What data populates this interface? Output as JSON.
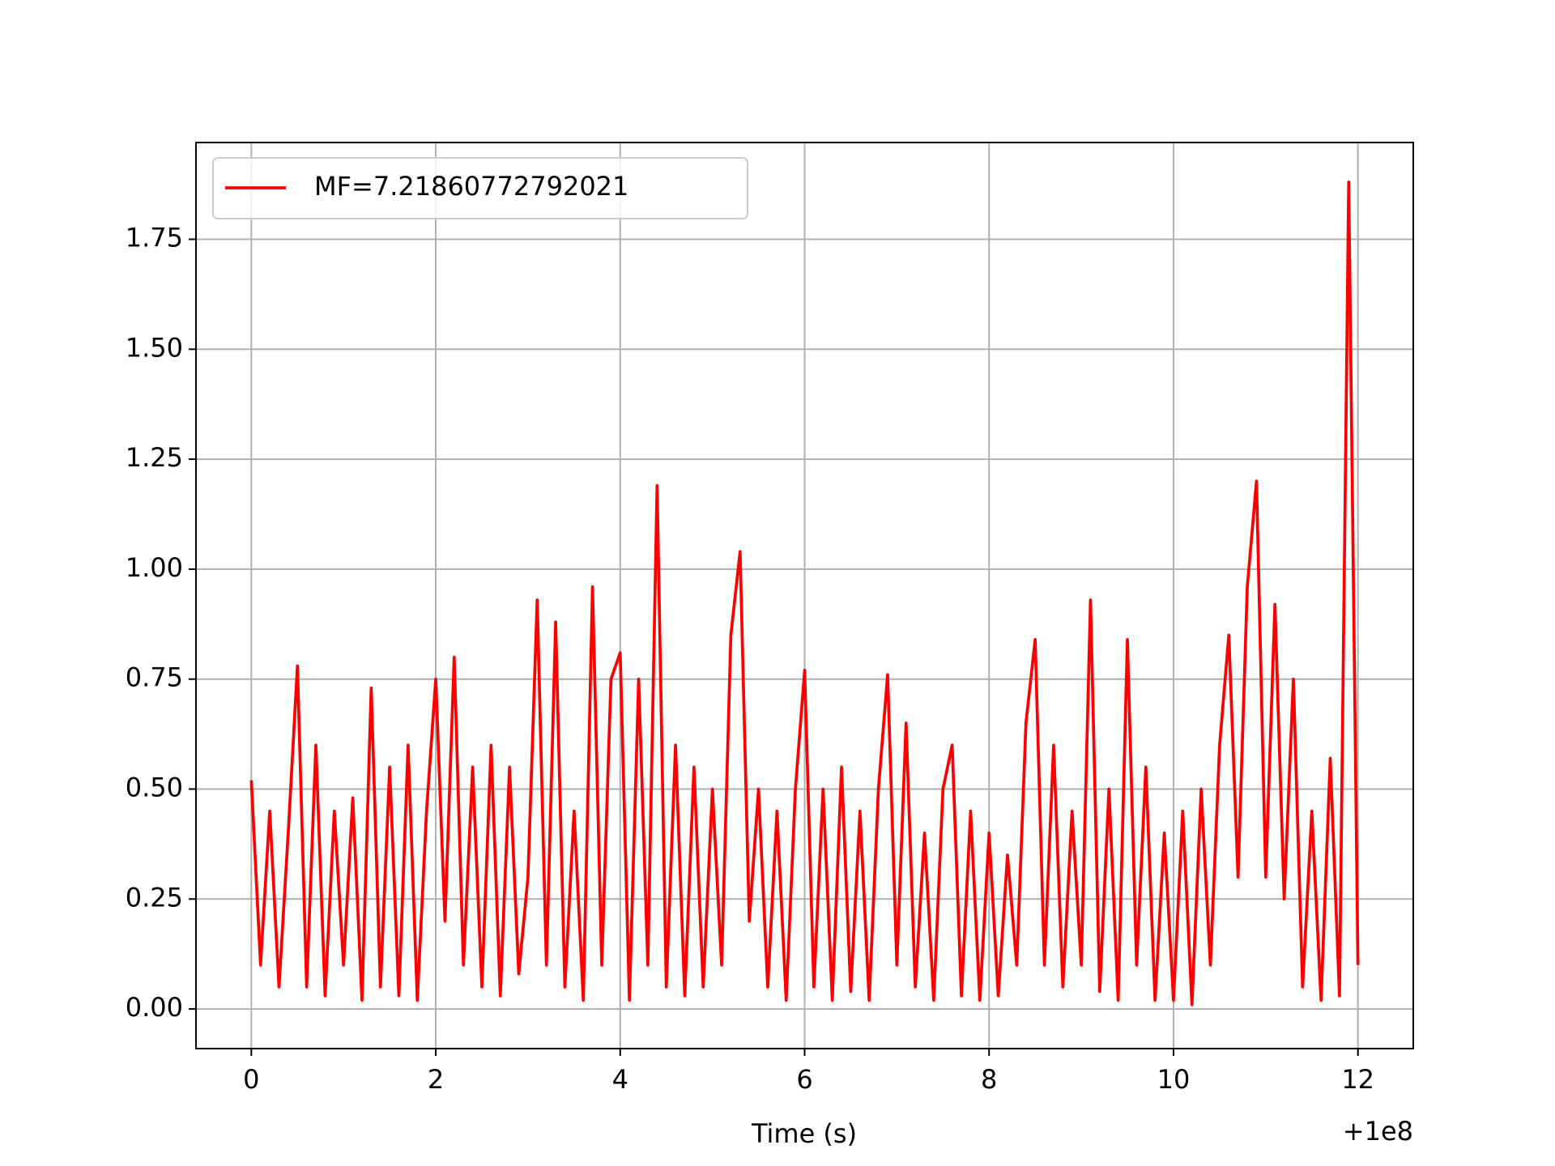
{
  "chart_data": {
    "type": "line",
    "xlabel": "Time (s)",
    "x_offset_label": "+1e8",
    "x": [
      0,
      0.1,
      0.2,
      0.3,
      0.4,
      0.5,
      0.6,
      0.7,
      0.8,
      0.9,
      1,
      1.1,
      1.2,
      1.3,
      1.4,
      1.5,
      1.6,
      1.7,
      1.8,
      1.9,
      2,
      2.1,
      2.2,
      2.3,
      2.4,
      2.5,
      2.6,
      2.7,
      2.8,
      2.9,
      3,
      3.1,
      3.2,
      3.3,
      3.4,
      3.5,
      3.6,
      3.7,
      3.8,
      3.9,
      4,
      4.1,
      4.2,
      4.3,
      4.4,
      4.5,
      4.6,
      4.7,
      4.8,
      4.9,
      5,
      5.1,
      5.2,
      5.3,
      5.4,
      5.5,
      5.6,
      5.7,
      5.8,
      5.9,
      6,
      6.1,
      6.2,
      6.3,
      6.4,
      6.5,
      6.6,
      6.7,
      6.8,
      6.9,
      7,
      7.1,
      7.2,
      7.3,
      7.4,
      7.5,
      7.6,
      7.7,
      7.8,
      7.9,
      8,
      8.1,
      8.2,
      8.3,
      8.4,
      8.5,
      8.6,
      8.7,
      8.8,
      8.9,
      9,
      9.1,
      9.2,
      9.3,
      9.4,
      9.5,
      9.6,
      9.7,
      9.8,
      9.9,
      10,
      10.1,
      10.2,
      10.3,
      10.4,
      10.5,
      10.6,
      10.7,
      10.8,
      10.9,
      11,
      11.1,
      11.2,
      11.3,
      11.4,
      11.5,
      11.6,
      11.7,
      11.8,
      11.9,
      12
    ],
    "series": [
      {
        "name": "MF=7.21860772792021",
        "color": "#ff0000",
        "values": [
          0.52,
          0.1,
          0.45,
          0.05,
          0.4,
          0.78,
          0.05,
          0.6,
          0.03,
          0.45,
          0.1,
          0.48,
          0.02,
          0.73,
          0.05,
          0.55,
          0.03,
          0.6,
          0.02,
          0.45,
          0.75,
          0.2,
          0.8,
          0.1,
          0.55,
          0.05,
          0.6,
          0.03,
          0.55,
          0.08,
          0.3,
          0.93,
          0.1,
          0.88,
          0.05,
          0.45,
          0.02,
          0.96,
          0.1,
          0.75,
          0.81,
          0.02,
          0.75,
          0.1,
          1.19,
          0.05,
          0.6,
          0.03,
          0.55,
          0.05,
          0.5,
          0.1,
          0.85,
          1.04,
          0.2,
          0.5,
          0.05,
          0.45,
          0.02,
          0.5,
          0.77,
          0.05,
          0.5,
          0.02,
          0.55,
          0.04,
          0.45,
          0.02,
          0.5,
          0.76,
          0.1,
          0.65,
          0.05,
          0.4,
          0.02,
          0.5,
          0.6,
          0.03,
          0.45,
          0.02,
          0.4,
          0.03,
          0.35,
          0.1,
          0.65,
          0.84,
          0.1,
          0.6,
          0.05,
          0.45,
          0.1,
          0.93,
          0.04,
          0.5,
          0.02,
          0.84,
          0.1,
          0.55,
          0.02,
          0.4,
          0.02,
          0.45,
          0.01,
          0.5,
          0.1,
          0.6,
          0.85,
          0.3,
          0.96,
          1.2,
          0.3,
          0.92,
          0.25,
          0.75,
          0.05,
          0.45,
          0.02,
          0.57,
          0.03,
          1.88,
          0.1
        ]
      }
    ],
    "xlim": [
      -0.6,
      12.6
    ],
    "ylim": [
      -0.09,
      1.97
    ],
    "xticks": [
      0,
      2,
      4,
      6,
      8,
      10,
      12
    ],
    "yticks": [
      {
        "value": 0,
        "label": "0.00"
      },
      {
        "value": 0.25,
        "label": "0.25"
      },
      {
        "value": 0.5,
        "label": "0.50"
      },
      {
        "value": 0.75,
        "label": "0.75"
      },
      {
        "value": 1,
        "label": "1.00"
      },
      {
        "value": 1.25,
        "label": "1.25"
      },
      {
        "value": 1.5,
        "label": "1.50"
      },
      {
        "value": 1.75,
        "label": "1.75"
      }
    ],
    "grid": true,
    "legend": "upper left"
  }
}
